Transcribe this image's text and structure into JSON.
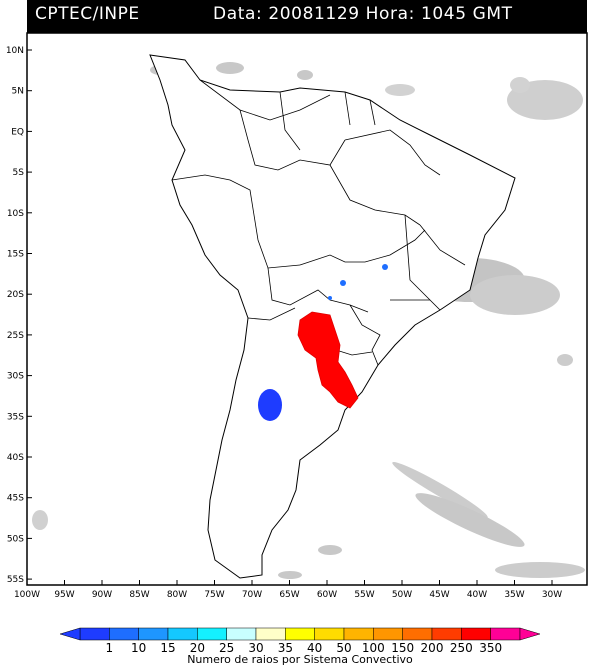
{
  "header": {
    "source": "CPTEC/INPE",
    "datetime": "Data: 20081129 Hora: 1045 GMT"
  },
  "map": {
    "lon_range": [
      -100,
      -25
    ],
    "lat_range": [
      -56,
      12
    ],
    "lat_labels": [
      "10N",
      "5N",
      "EQ",
      "5S",
      "10S",
      "15S",
      "20S",
      "25S",
      "30S",
      "35S",
      "40S",
      "45S",
      "50S",
      "55S"
    ],
    "lon_labels": [
      "100W",
      "95W",
      "90W",
      "85W",
      "80W",
      "75W",
      "70W",
      "65W",
      "60W",
      "55W",
      "50W",
      "45W",
      "40W",
      "35W",
      "30W"
    ]
  },
  "legend": {
    "labels": [
      "1",
      "10",
      "15",
      "20",
      "25",
      "30",
      "35",
      "40",
      "50",
      "100",
      "150",
      "200",
      "250",
      "350"
    ],
    "colors": [
      "#1e3cff",
      "#1e6eff",
      "#1e96ff",
      "#14c8ff",
      "#14f0ff",
      "#c8ffff",
      "#ffffc8",
      "#ffff00",
      "#ffdc00",
      "#ffb400",
      "#ff9600",
      "#ff6e00",
      "#ff3c00",
      "#ff0000",
      "#ff0096"
    ],
    "caption": "Numero de raios por Sistema Convectivo"
  }
}
